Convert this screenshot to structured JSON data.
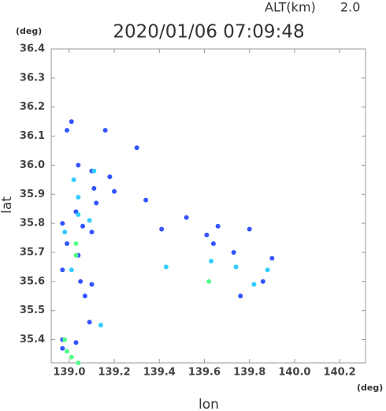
{
  "chart_data": {
    "type": "scatter",
    "title": "2020/01/06 07:09:48",
    "altitude_label": "ALT(km)",
    "altitude": "2.0",
    "x_label": "lon",
    "y_label": "lat",
    "x_unit": "(deg)",
    "y_unit": "(deg)",
    "xlim": [
      138.92,
      140.315
    ],
    "ylim": [
      35.32,
      36.4
    ],
    "xticks": [
      {
        "value": 139,
        "label": "139.0"
      },
      139.2,
      139.4,
      139.6,
      139.8,
      {
        "value": 140,
        "label": "140.0"
      },
      140.2
    ],
    "yticks": [
      35.4,
      35.5,
      35.6,
      35.7,
      35.8,
      35.9,
      {
        "value": 36,
        "label": "36.0"
      },
      36.1,
      36.2,
      36.3,
      36.4
    ],
    "series": [
      {
        "color": "#3355ff",
        "x": [
          139.01,
          138.99,
          139.04,
          139.1,
          139.16,
          139.18,
          139.2,
          139.3,
          139.11,
          139.03,
          138.97,
          139.06,
          139.1,
          139.12,
          138.99,
          139.04,
          138.97,
          139.05,
          139.1,
          139.07,
          139.09,
          139.03,
          138.97,
          138.97,
          139.52,
          139.61,
          139.66,
          139.8,
          139.73,
          139.9,
          139.76,
          139.86,
          139.64,
          139.41,
          139.34
        ],
        "values": [
          36.15,
          36.12,
          36.0,
          35.98,
          36.12,
          35.96,
          35.91,
          36.06,
          35.92,
          35.84,
          35.8,
          35.79,
          35.77,
          35.87,
          35.73,
          35.69,
          35.64,
          35.6,
          35.59,
          35.55,
          35.46,
          35.39,
          35.4,
          35.37,
          35.82,
          35.76,
          35.79,
          35.78,
          35.7,
          35.68,
          35.55,
          35.6,
          35.73,
          35.78,
          35.88
        ]
      },
      {
        "color": "#33ccff",
        "x": [
          139.11,
          139.04,
          139.02,
          138.98,
          139.04,
          139.09,
          139.43,
          139.82,
          139.74,
          139.88,
          139.14,
          139.01,
          139.63
        ],
        "values": [
          35.98,
          35.89,
          35.95,
          35.77,
          35.83,
          35.81,
          35.65,
          35.59,
          35.65,
          35.64,
          35.45,
          35.64,
          35.67
        ]
      },
      {
        "color": "#55ff88",
        "x": [
          139.03,
          139.62,
          138.98,
          138.99,
          139.01,
          139.04,
          139.03
        ],
        "values": [
          35.73,
          35.6,
          35.4,
          35.36,
          35.34,
          35.32,
          35.69
        ]
      }
    ]
  }
}
